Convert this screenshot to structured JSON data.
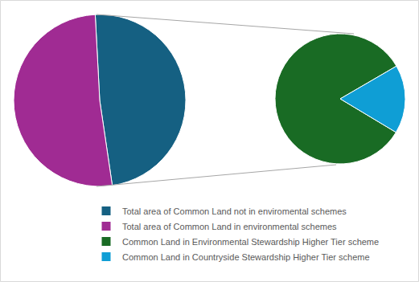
{
  "chart_data": [
    {
      "type": "pie",
      "categories": [
        "Total area of Common Land not in enviromental schemes",
        "Total area of Common Land in environmental schemes"
      ],
      "values": [
        48.5,
        51.5
      ],
      "colors": [
        "#156082",
        "#A02B93"
      ],
      "legend": "bottom"
    },
    {
      "type": "pie",
      "categories": [
        "Common Land in Environmental Stewardship Higher Tier scheme",
        "Common Land in Countryside Stewardship Higher Tier scheme"
      ],
      "values": [
        83,
        17
      ],
      "colors": [
        "#196B24",
        "#0F9ED5"
      ],
      "legend": "bottom"
    }
  ]
}
